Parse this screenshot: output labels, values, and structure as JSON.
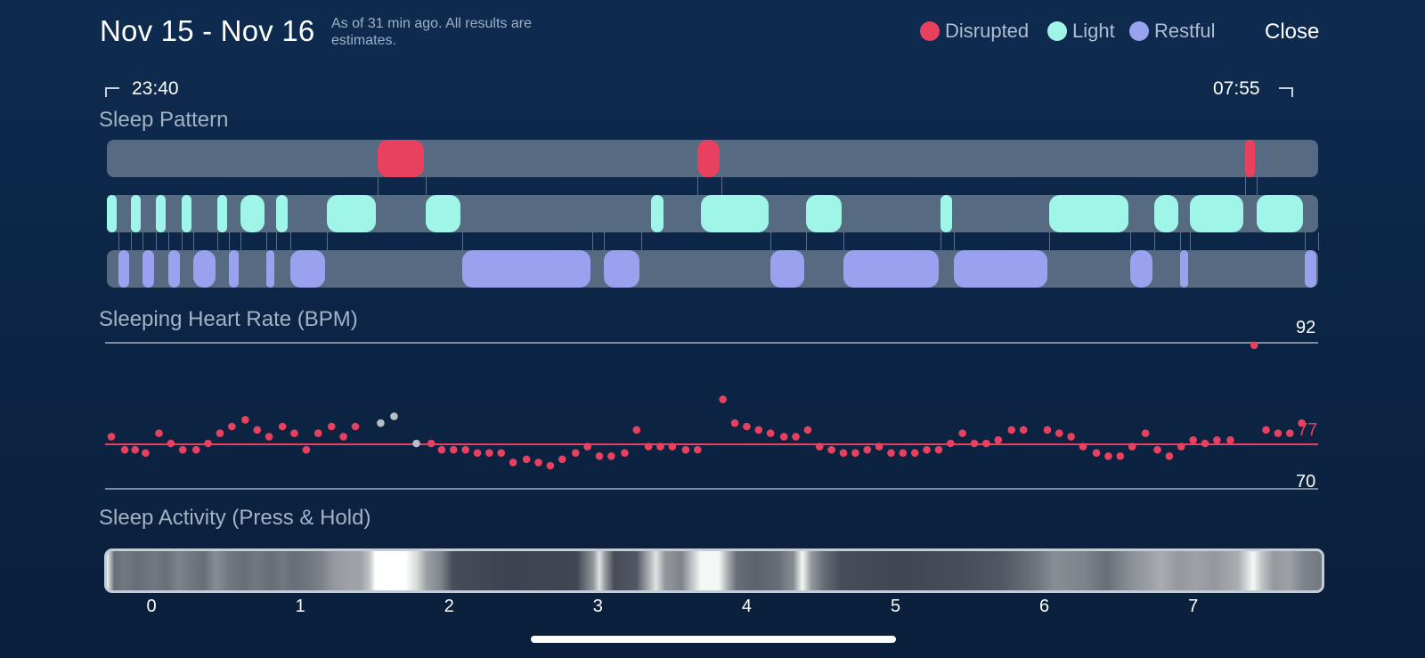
{
  "header": {
    "title": "Nov 15 - Nov 16",
    "subtitle": "As of 31 min ago. All results are estimates.",
    "close_label": "Close",
    "legend": [
      {
        "label": "Disrupted",
        "color": "#e8415f"
      },
      {
        "label": "Light",
        "color": "#9ef5e8"
      },
      {
        "label": "Restful",
        "color": "#9aa2f0"
      }
    ]
  },
  "time_range": {
    "start": "23:40",
    "end": "07:55"
  },
  "sleep_pattern": {
    "label": "Sleep Pattern",
    "disrupted": [
      [
        1.52,
        1.84
      ],
      [
        3.67,
        3.83
      ],
      [
        7.35,
        7.43
      ]
    ],
    "light": [
      [
        -0.3,
        -0.22
      ],
      [
        -0.14,
        -0.06
      ],
      [
        0.03,
        0.11
      ],
      [
        0.2,
        0.28
      ],
      [
        0.44,
        0.52
      ],
      [
        0.6,
        0.77
      ],
      [
        0.84,
        0.93
      ],
      [
        1.18,
        1.52
      ],
      [
        1.84,
        2.09
      ],
      [
        3.36,
        3.45
      ],
      [
        3.69,
        4.0
      ],
      [
        3.83,
        4.16
      ],
      [
        4.4,
        4.65
      ],
      [
        5.3,
        5.39
      ],
      [
        6.03,
        6.58
      ],
      [
        6.74,
        6.91
      ],
      [
        6.98,
        7.35
      ],
      [
        7.43,
        7.75
      ]
    ],
    "restful": [
      [
        -0.22,
        -0.14
      ],
      [
        -0.06,
        0.03
      ],
      [
        0.11,
        0.2
      ],
      [
        0.28,
        0.44
      ],
      [
        0.52,
        0.6
      ],
      [
        0.77,
        0.84
      ],
      [
        0.93,
        1.18
      ],
      [
        2.09,
        2.96
      ],
      [
        3.04,
        3.29
      ],
      [
        4.16,
        4.4
      ],
      [
        4.65,
        5.3
      ],
      [
        5.39,
        6.03
      ],
      [
        6.58,
        6.74
      ],
      [
        6.91,
        6.98
      ],
      [
        7.75,
        7.84
      ]
    ]
  },
  "heart_rate": {
    "label": "Sleeping Heart Rate (BPM)",
    "max_label": "92",
    "avg_label": "77",
    "min_label": "70",
    "y_max": 92,
    "y_avg": 77,
    "y_min": 70,
    "points_red": [
      [
        -0.27,
        78
      ],
      [
        -0.18,
        76
      ],
      [
        -0.11,
        76
      ],
      [
        -0.04,
        75.5
      ],
      [
        0.05,
        78.5
      ],
      [
        0.13,
        77
      ],
      [
        0.21,
        76
      ],
      [
        0.3,
        76
      ],
      [
        0.38,
        77
      ],
      [
        0.46,
        78.5
      ],
      [
        0.54,
        79.5
      ],
      [
        0.63,
        80.5
      ],
      [
        0.71,
        79
      ],
      [
        0.79,
        78
      ],
      [
        0.88,
        79.5
      ],
      [
        0.96,
        78.5
      ],
      [
        1.04,
        76
      ],
      [
        1.12,
        78.5
      ],
      [
        1.21,
        79.5
      ],
      [
        1.29,
        78
      ],
      [
        1.37,
        79.5
      ],
      [
        1.88,
        77
      ],
      [
        1.95,
        76
      ],
      [
        2.03,
        76
      ],
      [
        2.11,
        76
      ],
      [
        2.19,
        75.5
      ],
      [
        2.27,
        75.5
      ],
      [
        2.35,
        75.5
      ],
      [
        2.43,
        74
      ],
      [
        2.52,
        74.5
      ],
      [
        2.6,
        74
      ],
      [
        2.68,
        73.5
      ],
      [
        2.76,
        74.5
      ],
      [
        2.85,
        75.5
      ],
      [
        2.93,
        76.5
      ],
      [
        3.01,
        75
      ],
      [
        3.09,
        75
      ],
      [
        3.18,
        75.5
      ],
      [
        3.26,
        79
      ],
      [
        3.34,
        76.5
      ],
      [
        3.42,
        76.5
      ],
      [
        3.5,
        76.5
      ],
      [
        3.59,
        76
      ],
      [
        3.67,
        76
      ],
      [
        3.84,
        83.5
      ],
      [
        3.92,
        80
      ],
      [
        4.0,
        79.5
      ],
      [
        4.08,
        79
      ],
      [
        4.16,
        78.5
      ],
      [
        4.25,
        78
      ],
      [
        4.33,
        78
      ],
      [
        4.41,
        79
      ],
      [
        4.49,
        76.5
      ],
      [
        4.57,
        76
      ],
      [
        4.65,
        75.5
      ],
      [
        4.73,
        75.5
      ],
      [
        4.81,
        76
      ],
      [
        4.89,
        76.5
      ],
      [
        4.97,
        75.5
      ],
      [
        5.05,
        75.5
      ],
      [
        5.13,
        75.5
      ],
      [
        5.21,
        76
      ],
      [
        5.29,
        76
      ],
      [
        5.37,
        77
      ],
      [
        5.45,
        78.5
      ],
      [
        5.53,
        77
      ],
      [
        5.61,
        77
      ],
      [
        5.69,
        77.5
      ],
      [
        5.78,
        79
      ],
      [
        5.86,
        79
      ],
      [
        6.02,
        79
      ],
      [
        6.1,
        78.5
      ],
      [
        6.18,
        78
      ],
      [
        6.26,
        76.5
      ],
      [
        6.35,
        75.5
      ],
      [
        6.43,
        75
      ],
      [
        6.51,
        75
      ],
      [
        6.59,
        76.5
      ],
      [
        6.68,
        78.5
      ],
      [
        6.76,
        76
      ],
      [
        6.84,
        75
      ],
      [
        6.92,
        76.5
      ],
      [
        7.0,
        77.5
      ],
      [
        7.08,
        77
      ],
      [
        7.16,
        77.5
      ],
      [
        7.25,
        77.5
      ],
      [
        7.41,
        91.5
      ],
      [
        7.49,
        79
      ],
      [
        7.57,
        78.5
      ],
      [
        7.65,
        78.5
      ],
      [
        7.73,
        80
      ]
    ],
    "points_gray": [
      [
        1.54,
        80
      ],
      [
        1.63,
        81
      ],
      [
        1.78,
        77
      ]
    ]
  },
  "sleep_activity": {
    "label": "Sleep Activity (Press & Hold)",
    "intensity": [
      [
        -0.3,
        0.95
      ],
      [
        -0.25,
        0.3
      ],
      [
        -0.18,
        0.35
      ],
      [
        -0.1,
        0.3
      ],
      [
        0.02,
        0.35
      ],
      [
        0.1,
        0.3
      ],
      [
        0.18,
        0.4
      ],
      [
        0.26,
        0.35
      ],
      [
        0.35,
        0.3
      ],
      [
        0.43,
        0.45
      ],
      [
        0.52,
        0.35
      ],
      [
        0.62,
        0.3
      ],
      [
        0.7,
        0.35
      ],
      [
        0.8,
        0.3
      ],
      [
        0.88,
        0.35
      ],
      [
        0.96,
        0.3
      ],
      [
        1.06,
        0.35
      ],
      [
        1.14,
        0.4
      ],
      [
        1.22,
        0.5
      ],
      [
        1.32,
        0.55
      ],
      [
        1.4,
        0.55
      ],
      [
        1.46,
        0.7
      ],
      [
        1.5,
        1.0
      ],
      [
        1.7,
        1.0
      ],
      [
        1.78,
        0.8
      ],
      [
        1.84,
        0.55
      ],
      [
        1.94,
        0.4
      ],
      [
        2.02,
        0.15
      ],
      [
        2.4,
        0.1
      ],
      [
        2.85,
        0.12
      ],
      [
        2.96,
        0.5
      ],
      [
        3.0,
        0.85
      ],
      [
        3.04,
        0.5
      ],
      [
        3.1,
        0.15
      ],
      [
        3.25,
        0.2
      ],
      [
        3.32,
        0.55
      ],
      [
        3.38,
        0.85
      ],
      [
        3.44,
        0.5
      ],
      [
        3.55,
        0.4
      ],
      [
        3.62,
        0.7
      ],
      [
        3.68,
        0.95
      ],
      [
        3.8,
        0.95
      ],
      [
        3.86,
        0.6
      ],
      [
        3.92,
        0.3
      ],
      [
        4.05,
        0.25
      ],
      [
        4.2,
        0.3
      ],
      [
        4.3,
        0.45
      ],
      [
        4.36,
        0.95
      ],
      [
        4.42,
        0.5
      ],
      [
        4.5,
        0.3
      ],
      [
        4.62,
        0.15
      ],
      [
        5.0,
        0.12
      ],
      [
        5.4,
        0.15
      ],
      [
        5.7,
        0.2
      ],
      [
        5.95,
        0.35
      ],
      [
        6.05,
        0.45
      ],
      [
        6.25,
        0.4
      ],
      [
        6.4,
        0.3
      ],
      [
        6.55,
        0.45
      ],
      [
        6.7,
        0.55
      ],
      [
        6.76,
        0.6
      ],
      [
        6.88,
        0.5
      ],
      [
        7.0,
        0.55
      ],
      [
        7.12,
        0.5
      ],
      [
        7.28,
        0.6
      ],
      [
        7.38,
        0.95
      ],
      [
        7.44,
        0.7
      ],
      [
        7.52,
        0.5
      ],
      [
        7.62,
        0.55
      ],
      [
        7.72,
        0.4
      ],
      [
        7.84,
        0.35
      ]
    ]
  },
  "x_axis": {
    "min": -0.3,
    "max": 7.84,
    "ticks": [
      "0",
      "1",
      "2",
      "3",
      "4",
      "5",
      "6",
      "7"
    ]
  }
}
